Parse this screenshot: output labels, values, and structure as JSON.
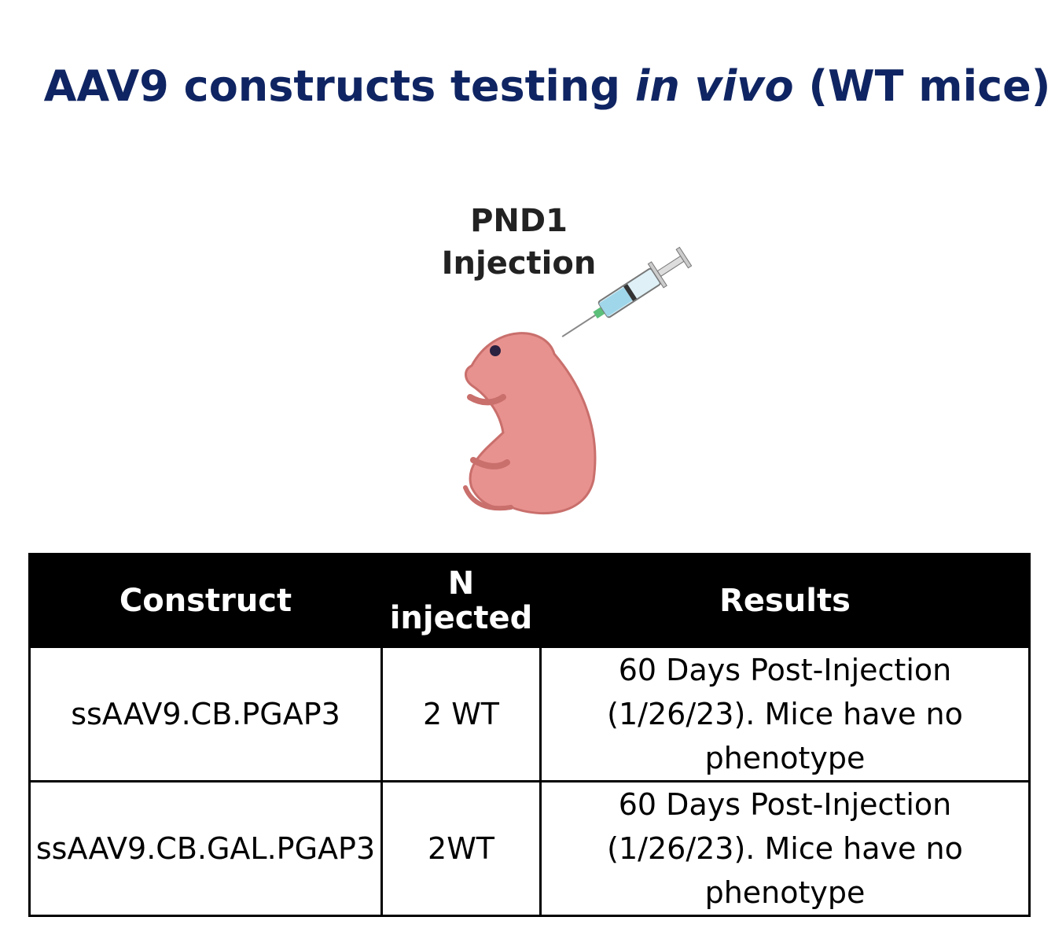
{
  "title": {
    "before": "AAV9 constructs testing",
    "italic": "in vivo",
    "after": "(WT mice)"
  },
  "illustration": {
    "label_top": "PND1",
    "label_bottom": "Injection"
  },
  "table": {
    "header": [
      "Construct",
      "N injected",
      "Results"
    ],
    "rows": [
      [
        "ssAAV9.CB.PGAP3",
        "2 WT",
        "60 Days Post-Injection (1/26/23). Mice have no phenotype"
      ],
      [
        "ssAAV9.CB.GAL.PGAP3",
        "2WT",
        "60 Days Post-Injection (1/26/23). Mice have no phenotype"
      ]
    ]
  }
}
